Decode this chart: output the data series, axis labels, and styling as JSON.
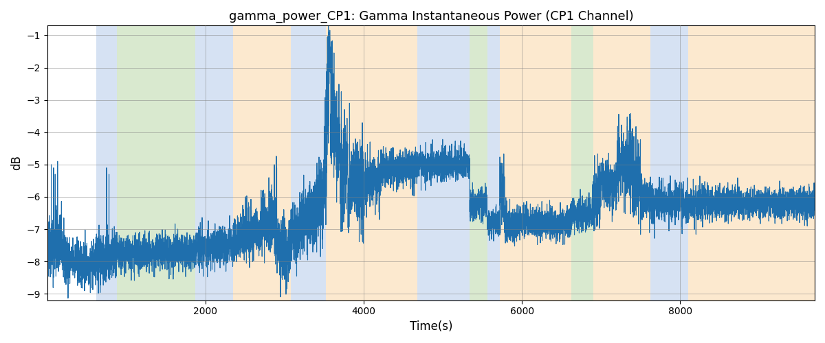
{
  "title": "gamma_power_CP1: Gamma Instantaneous Power (CP1 Channel)",
  "xlabel": "Time(s)",
  "ylabel": "dB",
  "ylim": [
    -9.2,
    -0.7
  ],
  "xlim": [
    0,
    9700
  ],
  "yticks": [
    -9,
    -8,
    -7,
    -6,
    -5,
    -4,
    -3,
    -2,
    -1
  ],
  "xticks": [
    2000,
    4000,
    6000,
    8000
  ],
  "line_color": "#1f6fad",
  "line_width": 0.8,
  "bg_color": "#ffffff",
  "colored_bands": [
    {
      "xmin": 620,
      "xmax": 880,
      "color": "#aec6e8",
      "alpha": 0.5
    },
    {
      "xmin": 880,
      "xmax": 1870,
      "color": "#b5d5a0",
      "alpha": 0.5
    },
    {
      "xmin": 1870,
      "xmax": 2350,
      "color": "#aec6e8",
      "alpha": 0.5
    },
    {
      "xmin": 2350,
      "xmax": 3080,
      "color": "#fad5a0",
      "alpha": 0.5
    },
    {
      "xmin": 3080,
      "xmax": 3520,
      "color": "#aec6e8",
      "alpha": 0.5
    },
    {
      "xmin": 3520,
      "xmax": 4680,
      "color": "#fad5a0",
      "alpha": 0.5
    },
    {
      "xmin": 4680,
      "xmax": 5340,
      "color": "#aec6e8",
      "alpha": 0.5
    },
    {
      "xmin": 5340,
      "xmax": 5560,
      "color": "#b5d5a0",
      "alpha": 0.5
    },
    {
      "xmin": 5560,
      "xmax": 5720,
      "color": "#aec6e8",
      "alpha": 0.5
    },
    {
      "xmin": 5720,
      "xmax": 6620,
      "color": "#fad5a0",
      "alpha": 0.5
    },
    {
      "xmin": 6620,
      "xmax": 6900,
      "color": "#b5d5a0",
      "alpha": 0.5
    },
    {
      "xmin": 6900,
      "xmax": 7620,
      "color": "#fad5a0",
      "alpha": 0.5
    },
    {
      "xmin": 7620,
      "xmax": 8100,
      "color": "#aec6e8",
      "alpha": 0.5
    },
    {
      "xmin": 8100,
      "xmax": 9700,
      "color": "#fad5a0",
      "alpha": 0.5
    }
  ],
  "seed": 42,
  "n_points": 9700
}
